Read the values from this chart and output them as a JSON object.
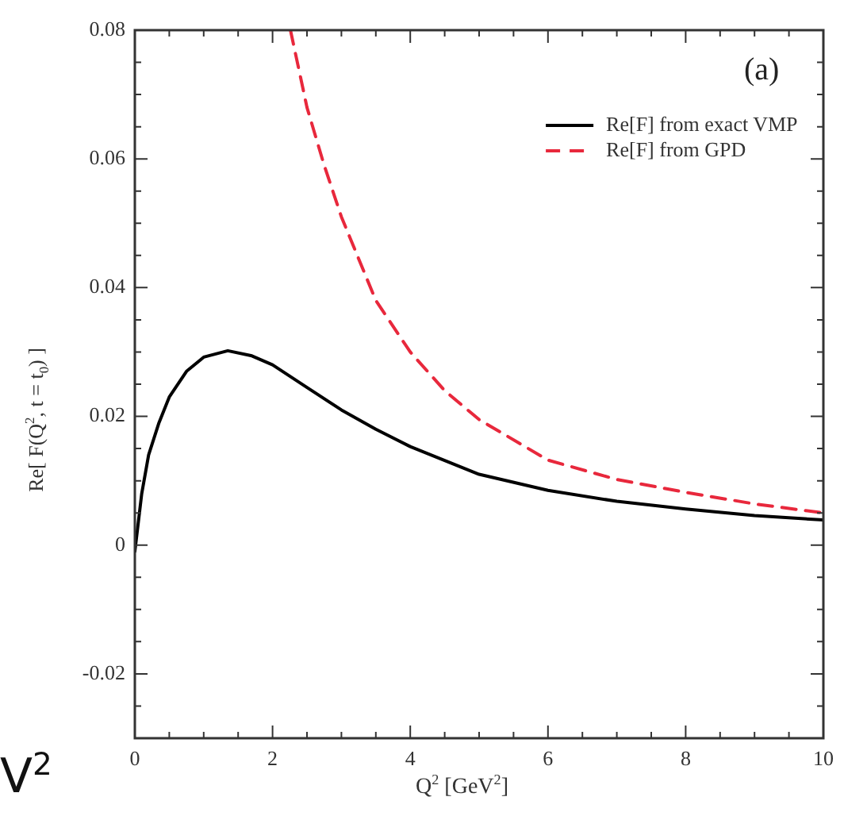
{
  "chart_data": {
    "type": "line",
    "xlabel": "Q$^{2}$ [GeV$^{2}$]",
    "ylabel": "Re[ F(Q$^{2}$, t = t$_{0}$) ]",
    "annotations": [
      "(a)",
      "V$^{2}$"
    ],
    "xlim": [
      0,
      10
    ],
    "ylim": [
      -0.03,
      0.08
    ],
    "xticks": [
      0,
      {
        "value": 0.5,
        "label": null
      },
      2,
      {
        "value": 1,
        "label": null
      },
      {
        "value": 1.5,
        "label": null
      },
      {
        "value": 2.5,
        "label": null
      },
      {
        "value": 3,
        "label": null
      },
      {
        "value": 3.5,
        "label": null
      },
      4,
      {
        "value": 4.5,
        "label": null
      },
      {
        "value": 5,
        "label": null
      },
      {
        "value": 5.5,
        "label": null
      },
      6,
      {
        "value": 6.5,
        "label": null
      },
      {
        "value": 7,
        "label": null
      },
      {
        "value": 7.5,
        "label": null
      },
      8,
      {
        "value": 8.5,
        "label": null
      },
      {
        "value": 9,
        "label": null
      },
      {
        "value": 9.5,
        "label": null
      },
      10
    ],
    "yticks": [
      {
        "value": -0.03,
        "label": null
      },
      {
        "value": -0.025,
        "label": null
      },
      -0.02,
      {
        "value": -0.015,
        "label": null
      },
      {
        "value": -0.01,
        "label": null
      },
      {
        "value": -0.005,
        "label": null
      },
      0,
      {
        "value": 0.005,
        "label": null
      },
      {
        "value": 0.01,
        "label": null
      },
      {
        "value": 0.015,
        "label": null
      },
      0.02,
      {
        "value": 0.025,
        "label": null
      },
      {
        "value": 0.03,
        "label": null
      },
      {
        "value": 0.035,
        "label": null
      },
      0.04,
      {
        "value": 0.045,
        "label": null
      },
      {
        "value": 0.05,
        "label": null
      },
      {
        "value": 0.055,
        "label": null
      },
      0.06,
      {
        "value": 0.065,
        "label": null
      },
      {
        "value": 0.07,
        "label": null
      },
      {
        "value": 0.075,
        "label": null
      },
      0.08
    ],
    "legend": "top right",
    "marker": "none",
    "series": [
      {
        "name": "Re[F] from exact VMP",
        "color": "#000000",
        "line_style": "solid",
        "x": [
          0,
          0.1,
          0.2,
          0.35,
          0.5,
          0.75,
          1,
          1.35,
          1.7,
          2,
          2.5,
          3,
          3.5,
          4,
          5,
          6,
          7,
          8,
          9,
          10
        ],
        "values": [
          -0.001,
          0.008,
          0.014,
          0.019,
          0.023,
          0.027,
          0.0292,
          0.0302,
          0.0294,
          0.028,
          0.0245,
          0.021,
          0.018,
          0.0153,
          0.011,
          0.0085,
          0.0068,
          0.0056,
          0.0046,
          0.0039
        ]
      },
      {
        "name": "Re[F] from GPD",
        "color": "#e8283c",
        "line_style": "dashed",
        "x": [
          2.26,
          2.5,
          2.75,
          3,
          3.5,
          4,
          4.5,
          5,
          6,
          7,
          8,
          9,
          10
        ],
        "values": [
          0.08,
          0.068,
          0.059,
          0.051,
          0.038,
          0.03,
          0.024,
          0.0195,
          0.0132,
          0.0102,
          0.0082,
          0.0064,
          0.005
        ]
      }
    ]
  }
}
